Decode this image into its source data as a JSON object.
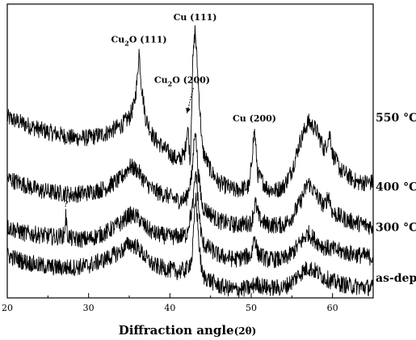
{
  "chart_data": {
    "type": "line",
    "title": "",
    "xlabel": "Diffraction angle",
    "xlabel_suffix": "(2θ)",
    "ylabel": "",
    "xlim": [
      20,
      65
    ],
    "x_ticks": [
      20,
      30,
      40,
      50,
      60
    ],
    "y_axis_ticks": false,
    "grid": false,
    "legend": "none",
    "line_color": "#000000",
    "series": [
      {
        "name": "550 °C",
        "baseline": 0.84,
        "points": [
          [
            20,
            0.84
          ],
          [
            22,
            0.81
          ],
          [
            24,
            0.78
          ],
          [
            26,
            0.76
          ],
          [
            28,
            0.74
          ],
          [
            30,
            0.74
          ],
          [
            32,
            0.76
          ],
          [
            34,
            0.8
          ],
          [
            35,
            0.84
          ],
          [
            35.6,
            0.9
          ],
          [
            36.0,
            1.03
          ],
          [
            36.2,
            1.17
          ],
          [
            36.5,
            1.0
          ],
          [
            37,
            0.84
          ],
          [
            38,
            0.74
          ],
          [
            39,
            0.7
          ],
          [
            40,
            0.66
          ],
          [
            41,
            0.63
          ],
          [
            41.8,
            0.66
          ],
          [
            42.2,
            0.8
          ],
          [
            42.5,
            0.62
          ],
          [
            42.8,
            1.1
          ],
          [
            43.1,
            1.28
          ],
          [
            43.5,
            1.0
          ],
          [
            44,
            0.68
          ],
          [
            45,
            0.58
          ],
          [
            46,
            0.52
          ],
          [
            48,
            0.48
          ],
          [
            49.8,
            0.5
          ],
          [
            50.2,
            0.7
          ],
          [
            50.4,
            0.78
          ],
          [
            50.8,
            0.56
          ],
          [
            52,
            0.49
          ],
          [
            53,
            0.48
          ],
          [
            54,
            0.5
          ],
          [
            55,
            0.58
          ],
          [
            56,
            0.72
          ],
          [
            57,
            0.82
          ],
          [
            58,
            0.78
          ],
          [
            59,
            0.68
          ],
          [
            59.7,
            0.76
          ],
          [
            60,
            0.66
          ],
          [
            61,
            0.58
          ],
          [
            62,
            0.55
          ],
          [
            63,
            0.52
          ],
          [
            65,
            0.52
          ]
        ]
      },
      {
        "name": "400 °C",
        "baseline": 0.5,
        "points": [
          [
            20,
            0.54
          ],
          [
            22,
            0.51
          ],
          [
            24,
            0.48
          ],
          [
            26,
            0.47
          ],
          [
            28,
            0.46
          ],
          [
            30,
            0.47
          ],
          [
            32,
            0.49
          ],
          [
            34,
            0.54
          ],
          [
            35,
            0.6
          ],
          [
            36,
            0.58
          ],
          [
            37,
            0.52
          ],
          [
            38,
            0.48
          ],
          [
            40,
            0.45
          ],
          [
            41,
            0.43
          ],
          [
            42,
            0.44
          ],
          [
            42.7,
            0.55
          ],
          [
            43.1,
            0.8
          ],
          [
            43.5,
            0.56
          ],
          [
            44,
            0.4
          ],
          [
            46,
            0.33
          ],
          [
            48,
            0.31
          ],
          [
            50,
            0.32
          ],
          [
            50.5,
            0.42
          ],
          [
            51,
            0.34
          ],
          [
            52,
            0.31
          ],
          [
            54,
            0.31
          ],
          [
            55,
            0.35
          ],
          [
            56,
            0.42
          ],
          [
            57,
            0.52
          ],
          [
            58,
            0.46
          ],
          [
            59,
            0.4
          ],
          [
            59.5,
            0.46
          ],
          [
            60,
            0.37
          ],
          [
            62,
            0.33
          ],
          [
            65,
            0.3
          ]
        ]
      },
      {
        "name": "300 °C",
        "baseline": 0.3,
        "points": [
          [
            20,
            0.3
          ],
          [
            22,
            0.27
          ],
          [
            24,
            0.26
          ],
          [
            26,
            0.25
          ],
          [
            27,
            0.26
          ],
          [
            27.2,
            0.36
          ],
          [
            27.4,
            0.26
          ],
          [
            28,
            0.24
          ],
          [
            30,
            0.24
          ],
          [
            32,
            0.27
          ],
          [
            34,
            0.32
          ],
          [
            35,
            0.36
          ],
          [
            36,
            0.35
          ],
          [
            37,
            0.3
          ],
          [
            38,
            0.27
          ],
          [
            40,
            0.25
          ],
          [
            42,
            0.26
          ],
          [
            42.8,
            0.4
          ],
          [
            43.2,
            0.58
          ],
          [
            43.6,
            0.36
          ],
          [
            44,
            0.22
          ],
          [
            46,
            0.16
          ],
          [
            48,
            0.14
          ],
          [
            50,
            0.16
          ],
          [
            50.4,
            0.26
          ],
          [
            50.8,
            0.17
          ],
          [
            52,
            0.14
          ],
          [
            54,
            0.14
          ],
          [
            55,
            0.17
          ],
          [
            56,
            0.22
          ],
          [
            57,
            0.27
          ],
          [
            58,
            0.23
          ],
          [
            59,
            0.2
          ],
          [
            60,
            0.19
          ],
          [
            62,
            0.17
          ],
          [
            65,
            0.15
          ]
        ]
      },
      {
        "name": "as-dep",
        "baseline": 0.05,
        "points": [
          [
            20,
            0.16
          ],
          [
            22,
            0.13
          ],
          [
            24,
            0.11
          ],
          [
            26,
            0.1
          ],
          [
            28,
            0.1
          ],
          [
            30,
            0.11
          ],
          [
            32,
            0.14
          ],
          [
            34,
            0.18
          ],
          [
            35,
            0.22
          ],
          [
            36,
            0.2
          ],
          [
            37,
            0.15
          ],
          [
            38,
            0.11
          ],
          [
            40,
            0.09
          ],
          [
            41,
            0.08
          ],
          [
            42,
            0.09
          ],
          [
            42.7,
            0.14
          ],
          [
            43.2,
            0.46
          ],
          [
            43.6,
            0.2
          ],
          [
            44,
            0.06
          ],
          [
            46,
            0.01
          ],
          [
            48,
            -0.01
          ],
          [
            50,
            0.0
          ],
          [
            50.5,
            0.02
          ],
          [
            52,
            0.0
          ],
          [
            54,
            0.0
          ],
          [
            55,
            0.03
          ],
          [
            56,
            0.07
          ],
          [
            57,
            0.1
          ],
          [
            58,
            0.08
          ],
          [
            59,
            0.05
          ],
          [
            60,
            0.03
          ],
          [
            62,
            0.01
          ],
          [
            65,
            0.0
          ]
        ]
      }
    ],
    "annotations": [
      {
        "text": "Cu",
        "sub": "2",
        "rest": "O (111)",
        "x": 36.2,
        "y": 1.21
      },
      {
        "text": "Cu",
        "sub": "2",
        "rest": "O (200)",
        "x": 41.5,
        "y": 1.01,
        "arrow_to": [
          42.2,
          0.85
        ]
      },
      {
        "text": "Cu (111)",
        "sub": "",
        "rest": "",
        "x": 43.1,
        "y": 1.32
      },
      {
        "text": "Cu (200)",
        "sub": "",
        "rest": "",
        "x": 50.4,
        "y": 0.82
      },
      {
        "text": "?",
        "sub": "",
        "rest": "",
        "x": 27.2,
        "y": 0.4
      }
    ]
  }
}
